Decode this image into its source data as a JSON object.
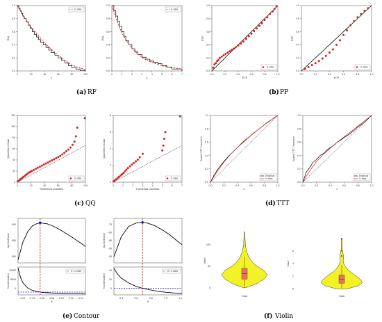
{
  "figure": {
    "captions": [
      {
        "label": "(a)",
        "text": "RF"
      },
      {
        "label": "(b)",
        "text": "PP"
      },
      {
        "label": "(c)",
        "text": "QQ"
      },
      {
        "label": "(d)",
        "text": "TTT"
      },
      {
        "label": "(e)",
        "text": "Contour"
      },
      {
        "label": "(f)",
        "text": "Violin"
      }
    ]
  },
  "colors": {
    "empirical": "#000000",
    "fitted": "#d62020",
    "mle": "#1a1acc",
    "violin": "#f2f226",
    "box": "#f07060"
  },
  "chart_data": [
    {
      "panel": "a",
      "type": "line",
      "xlabel": "x",
      "ylabel": "R(x)",
      "xticks": [
        "0",
        "20",
        "40",
        "60",
        "80",
        "100"
      ],
      "yticks": [
        "0.0",
        "0.2",
        "0.4",
        "0.6",
        "0.8",
        "1.0"
      ],
      "xlim": [
        0,
        100
      ],
      "ylim": [
        0,
        1
      ],
      "legend": "IL-mika",
      "legend_position": "top-right",
      "series": [
        {
          "style": "step",
          "x": [
            0,
            2,
            4,
            6,
            8,
            10,
            13,
            16,
            19,
            22,
            25,
            28,
            31,
            34,
            38,
            42,
            46,
            50,
            55,
            60,
            65,
            70,
            75,
            80,
            86,
            92,
            100
          ],
          "y": [
            1.0,
            0.96,
            0.92,
            0.88,
            0.84,
            0.8,
            0.75,
            0.7,
            0.65,
            0.6,
            0.56,
            0.52,
            0.48,
            0.44,
            0.4,
            0.36,
            0.32,
            0.28,
            0.24,
            0.2,
            0.16,
            0.12,
            0.08,
            0.05,
            0.03,
            0.01,
            0.0
          ]
        },
        {
          "style": "dashed",
          "x": [
            0,
            10,
            20,
            30,
            40,
            50,
            60,
            70,
            80,
            90,
            100
          ],
          "y": [
            1.0,
            0.82,
            0.67,
            0.55,
            0.43,
            0.33,
            0.24,
            0.16,
            0.09,
            0.05,
            0.02
          ]
        }
      ]
    },
    {
      "panel": "a2",
      "type": "line",
      "xlabel": "y",
      "ylabel": "R(y)",
      "xticks": [
        "0",
        "1",
        "2",
        "3",
        "4",
        "5",
        "6",
        "7"
      ],
      "yticks": [
        "0.0",
        "0.2",
        "0.4",
        "0.6",
        "0.8",
        "1.0"
      ],
      "xlim": [
        0,
        7
      ],
      "ylim": [
        0,
        1
      ],
      "legend": "IL-mika",
      "legend_position": "top-right",
      "series": [
        {
          "style": "step",
          "x": [
            0,
            0.2,
            0.4,
            0.6,
            0.8,
            1.0,
            1.2,
            1.4,
            1.7,
            2.0,
            2.3,
            2.6,
            3.0,
            3.4,
            3.8,
            4.2,
            4.6,
            5.0,
            5.5,
            6.0,
            7.0
          ],
          "y": [
            1.0,
            0.92,
            0.84,
            0.76,
            0.68,
            0.6,
            0.53,
            0.46,
            0.4,
            0.34,
            0.29,
            0.25,
            0.21,
            0.18,
            0.15,
            0.13,
            0.11,
            0.08,
            0.06,
            0.03,
            0.0
          ]
        },
        {
          "style": "dashed",
          "x": [
            0,
            0.5,
            1,
            1.5,
            2,
            2.5,
            3,
            3.5,
            4,
            5,
            6,
            7
          ],
          "y": [
            1.0,
            0.77,
            0.58,
            0.45,
            0.35,
            0.27,
            0.21,
            0.16,
            0.13,
            0.08,
            0.05,
            0.03
          ]
        }
      ]
    },
    {
      "panel": "b",
      "type": "scatter",
      "xlabel": "ECP",
      "ylabel": "ECP",
      "xticks": [
        "0.0",
        "0.2",
        "0.4",
        "0.6",
        "0.8",
        "1.0"
      ],
      "yticks": [
        "0.0",
        "0.2",
        "0.4",
        "0.6",
        "0.8",
        "1.0"
      ],
      "xlim": [
        0,
        1
      ],
      "ylim": [
        0,
        1
      ],
      "legend": "IL-mika",
      "legend_position": "bottom-right",
      "points_x": [
        0.02,
        0.04,
        0.06,
        0.08,
        0.1,
        0.12,
        0.15,
        0.18,
        0.21,
        0.24,
        0.27,
        0.3,
        0.33,
        0.36,
        0.4,
        0.44,
        0.48,
        0.52,
        0.56,
        0.6,
        0.64,
        0.68,
        0.72,
        0.76,
        0.8,
        0.84,
        0.88,
        0.92,
        0.95,
        0.98
      ],
      "points_y": [
        0.05,
        0.1,
        0.12,
        0.15,
        0.17,
        0.2,
        0.22,
        0.24,
        0.26,
        0.28,
        0.3,
        0.32,
        0.34,
        0.36,
        0.39,
        0.42,
        0.45,
        0.49,
        0.53,
        0.57,
        0.61,
        0.65,
        0.69,
        0.73,
        0.78,
        0.82,
        0.87,
        0.91,
        0.95,
        0.99
      ]
    },
    {
      "panel": "b2",
      "type": "scatter",
      "xlabel": "ECP",
      "ylabel": "ECP",
      "xticks": [
        "0.0",
        "0.2",
        "0.4",
        "0.6",
        "0.8",
        "1.0"
      ],
      "yticks": [
        "0.0",
        "0.2",
        "0.4",
        "0.6",
        "0.8",
        "1.0"
      ],
      "xlim": [
        0,
        1
      ],
      "ylim": [
        0,
        1
      ],
      "legend": "IL-mika",
      "legend_position": "bottom-right",
      "points_x": [
        0.05,
        0.1,
        0.15,
        0.2,
        0.25,
        0.3,
        0.35,
        0.4,
        0.45,
        0.5,
        0.55,
        0.6,
        0.65,
        0.7,
        0.75,
        0.8,
        0.85,
        0.9,
        0.95
      ],
      "points_y": [
        0.03,
        0.06,
        0.09,
        0.12,
        0.15,
        0.19,
        0.23,
        0.28,
        0.33,
        0.4,
        0.47,
        0.55,
        0.62,
        0.7,
        0.76,
        0.82,
        0.87,
        0.92,
        0.96
      ]
    },
    {
      "panel": "c",
      "type": "scatter",
      "xlabel": "Theoretical Quantiles",
      "ylabel": "Quantiles in Data",
      "xticks": [
        "0",
        "20",
        "40",
        "60",
        "80",
        "100"
      ],
      "yticks": [
        "0",
        "20",
        "40",
        "60",
        "80",
        "100",
        "120"
      ],
      "xlim": [
        0,
        100
      ],
      "ylim": [
        0,
        125
      ],
      "legend": "IL-mika",
      "legend_position": "bottom-right",
      "points_x": [
        1,
        3,
        5,
        7,
        9,
        11,
        13,
        15,
        17,
        19,
        21,
        24,
        27,
        30,
        33,
        36,
        39,
        42,
        45,
        48,
        51,
        54,
        57,
        60,
        63,
        66,
        69,
        72,
        75,
        78,
        81,
        84,
        86,
        88,
        99
      ],
      "points_y": [
        2,
        4,
        6,
        8,
        10,
        12,
        14,
        16,
        18,
        19,
        21,
        23,
        25,
        27,
        29,
        31,
        33,
        35,
        37,
        39,
        41,
        43,
        45,
        47,
        49,
        52,
        55,
        58,
        61,
        65,
        70,
        76,
        86,
        102,
        120
      ]
    },
    {
      "panel": "c2",
      "type": "scatter",
      "xlabel": "Theoretical Quantiles",
      "ylabel": "Quantiles in Data",
      "xticks": [
        "0",
        "1",
        "2",
        "3",
        "4",
        "5",
        "6",
        "7"
      ],
      "yticks": [
        "0",
        "2",
        "4",
        "6",
        "8"
      ],
      "xlim": [
        0,
        7
      ],
      "ylim": [
        0,
        8
      ],
      "legend": "IL-mika",
      "legend_position": "bottom-right",
      "points_x": [
        0.05,
        0.15,
        0.3,
        0.45,
        0.6,
        0.75,
        0.9,
        1.05,
        1.2,
        1.35,
        1.5,
        1.7,
        1.9,
        2.1,
        2.3,
        2.5,
        2.7,
        3.0,
        5.0,
        5.1,
        5.2,
        5.3,
        6.8
      ],
      "points_y": [
        0.1,
        0.2,
        0.35,
        0.5,
        0.65,
        0.8,
        0.95,
        1.1,
        1.3,
        1.5,
        1.7,
        1.9,
        2.1,
        2.3,
        2.5,
        2.7,
        3.0,
        3.4,
        3.8,
        4.4,
        5.2,
        6.0,
        7.9
      ]
    },
    {
      "panel": "d",
      "type": "line",
      "xlabel": "u",
      "ylabel": "Scaled TTT-Transform",
      "xticks": [
        "0.0",
        "0.2",
        "0.4",
        "0.6",
        "0.8",
        "1.0"
      ],
      "yticks": [
        "0.0",
        "0.2",
        "0.4",
        "0.6",
        "0.8",
        "1.0"
      ],
      "xlim": [
        0,
        1
      ],
      "ylim": [
        0,
        1
      ],
      "legend": [
        "Empirical",
        "IL-mika"
      ],
      "legend_position": "bottom-right",
      "series": [
        {
          "name": "Empirical",
          "x": [
            0,
            0.05,
            0.1,
            0.15,
            0.2,
            0.25,
            0.3,
            0.35,
            0.4,
            0.45,
            0.5,
            0.55,
            0.6,
            0.65,
            0.7,
            0.75,
            0.8,
            0.85,
            0.9,
            0.95,
            1.0
          ],
          "y": [
            0,
            0.1,
            0.18,
            0.25,
            0.31,
            0.37,
            0.42,
            0.47,
            0.52,
            0.57,
            0.62,
            0.66,
            0.7,
            0.74,
            0.78,
            0.82,
            0.86,
            0.9,
            0.93,
            0.97,
            1.0
          ]
        },
        {
          "name": "IL-mika",
          "x": [
            0,
            0.1,
            0.2,
            0.3,
            0.4,
            0.5,
            0.6,
            0.7,
            0.8,
            0.9,
            1.0
          ],
          "y": [
            0,
            0.16,
            0.3,
            0.42,
            0.52,
            0.61,
            0.7,
            0.78,
            0.86,
            0.93,
            1.0
          ]
        }
      ]
    },
    {
      "panel": "d2",
      "type": "line",
      "xlabel": "u",
      "ylabel": "Scaled TTT-Transform",
      "xticks": [
        "0.0",
        "0.2",
        "0.4",
        "0.6",
        "0.8",
        "1.0"
      ],
      "yticks": [
        "0.0",
        "0.2",
        "0.4",
        "0.6",
        "0.8",
        "1.0"
      ],
      "xlim": [
        0,
        1
      ],
      "ylim": [
        0,
        1
      ],
      "legend": [
        "Empirical",
        "IL-mika"
      ],
      "legend_position": "bottom-right",
      "series": [
        {
          "name": "Empirical",
          "x": [
            0,
            0.05,
            0.1,
            0.15,
            0.2,
            0.25,
            0.3,
            0.35,
            0.4,
            0.45,
            0.5,
            0.55,
            0.6,
            0.65,
            0.7,
            0.75,
            0.8,
            0.85,
            0.9,
            0.95,
            1.0
          ],
          "y": [
            0,
            0.15,
            0.22,
            0.3,
            0.34,
            0.4,
            0.43,
            0.48,
            0.52,
            0.55,
            0.6,
            0.63,
            0.67,
            0.7,
            0.74,
            0.78,
            0.83,
            0.86,
            0.9,
            0.95,
            1.0
          ]
        },
        {
          "name": "IL-mika",
          "x": [
            0,
            0.1,
            0.2,
            0.3,
            0.4,
            0.5,
            0.6,
            0.7,
            0.8,
            0.9,
            1.0
          ],
          "y": [
            0,
            0.17,
            0.31,
            0.42,
            0.51,
            0.6,
            0.68,
            0.76,
            0.84,
            0.92,
            1.0
          ]
        }
      ]
    },
    {
      "panel": "e",
      "type": "line",
      "ylabel_top": "log-likelihood",
      "ylabel_bottom": "first derivative",
      "xlabel": "θ",
      "xticks": [
        "0.02",
        "0.04",
        "0.06",
        "0.08",
        "0.10",
        "0.12",
        "0.14"
      ],
      "yticks_top": [
        "-400",
        "-450",
        "-500"
      ],
      "yticks_bottom": [
        "0",
        "5000",
        "10000"
      ],
      "xlim": [
        0.01,
        0.15
      ],
      "legend": "θ̂ = 0.0559",
      "legend_position": "top-right",
      "mle": 0.0559,
      "top_x": [
        0.01,
        0.02,
        0.03,
        0.04,
        0.05,
        0.0559,
        0.07,
        0.08,
        0.09,
        0.1,
        0.11,
        0.12,
        0.13,
        0.14,
        0.15
      ],
      "top_y": [
        -520,
        -460,
        -425,
        -405,
        -397,
        -395,
        -398,
        -404,
        -412,
        -421,
        -431,
        -441,
        -452,
        -463,
        -475
      ],
      "ylim_top": [
        -530,
        -380
      ],
      "bottom_x": [
        0.01,
        0.015,
        0.02,
        0.03,
        0.04,
        0.05,
        0.06,
        0.08,
        0.1,
        0.12,
        0.14,
        0.15
      ],
      "bottom_y": [
        13000,
        8000,
        5000,
        2200,
        900,
        250,
        -150,
        -500,
        -700,
        -850,
        -950,
        -1000
      ],
      "ylim_bottom": [
        -1500,
        13500
      ]
    },
    {
      "panel": "e2",
      "type": "line",
      "ylabel_top": "log-likelihood",
      "ylabel_bottom": "first derivative",
      "xlabel": "θ",
      "xticks": [
        "0.4",
        "0.6",
        "0.8",
        "1.0",
        "1.2"
      ],
      "yticks_top": [
        "-75",
        "-80",
        "-85",
        "-90",
        "-95"
      ],
      "yticks_bottom": [
        "0",
        "20",
        "40"
      ],
      "xlim": [
        0.3,
        1.22
      ],
      "legend": "θ̂ = 0.6864",
      "legend_position": "top-right",
      "mle": 0.6864,
      "top_x": [
        0.3,
        0.4,
        0.5,
        0.6,
        0.6864,
        0.75,
        0.85,
        0.95,
        1.05,
        1.15,
        1.22
      ],
      "top_y": [
        -92,
        -82,
        -77,
        -75.3,
        -75,
        -75.3,
        -76.6,
        -78.6,
        -81,
        -84,
        -86
      ],
      "ylim_top": [
        -95,
        -73
      ],
      "bottom_x": [
        0.3,
        0.35,
        0.4,
        0.5,
        0.6,
        0.6864,
        0.8,
        0.9,
        1.0,
        1.1,
        1.22
      ],
      "bottom_y": [
        45,
        32,
        23,
        12,
        4,
        0,
        -4,
        -7,
        -9,
        -10.5,
        -12
      ],
      "ylim_bottom": [
        -15,
        48
      ]
    },
    {
      "panel": "f",
      "type": "violin",
      "xlabel": "Data",
      "ylabel": "Value",
      "yticks": [
        "0",
        "50",
        "100"
      ],
      "ylim": [
        -10,
        135
      ],
      "profile_y": [
        0,
        10,
        20,
        30,
        40,
        50,
        60,
        70,
        80,
        90,
        100,
        110,
        120,
        130
      ],
      "profile_w": [
        0.05,
        0.55,
        0.85,
        1.0,
        0.85,
        0.55,
        0.33,
        0.2,
        0.12,
        0.07,
        0.04,
        0.03,
        0.02,
        0.01
      ],
      "box": {
        "q1": 20,
        "median": 33,
        "q3": 45,
        "whisker_low": 2,
        "whisker_high": 72
      }
    },
    {
      "panel": "f2",
      "type": "violin",
      "xlabel": "Data",
      "ylabel": "Value",
      "yticks": [
        "0",
        "2",
        "4",
        "6"
      ],
      "ylim": [
        -0.5,
        8.5
      ],
      "profile_y": [
        0,
        0.5,
        1,
        1.5,
        2,
        2.5,
        3,
        3.5,
        4,
        4.5,
        5,
        5.5,
        6,
        6.5,
        7,
        7.5,
        8
      ],
      "profile_w": [
        0.25,
        0.8,
        1.0,
        0.9,
        0.7,
        0.5,
        0.3,
        0.18,
        0.1,
        0.07,
        0.09,
        0.07,
        0.04,
        0.02,
        0.02,
        0.03,
        0.02
      ],
      "box": {
        "q1": 0.9,
        "median": 1.5,
        "q3": 2.2,
        "whisker_low": 0.1,
        "whisker_high": 3.8
      },
      "outliers": [
        5.2,
        6.0,
        7.9
      ]
    }
  ]
}
